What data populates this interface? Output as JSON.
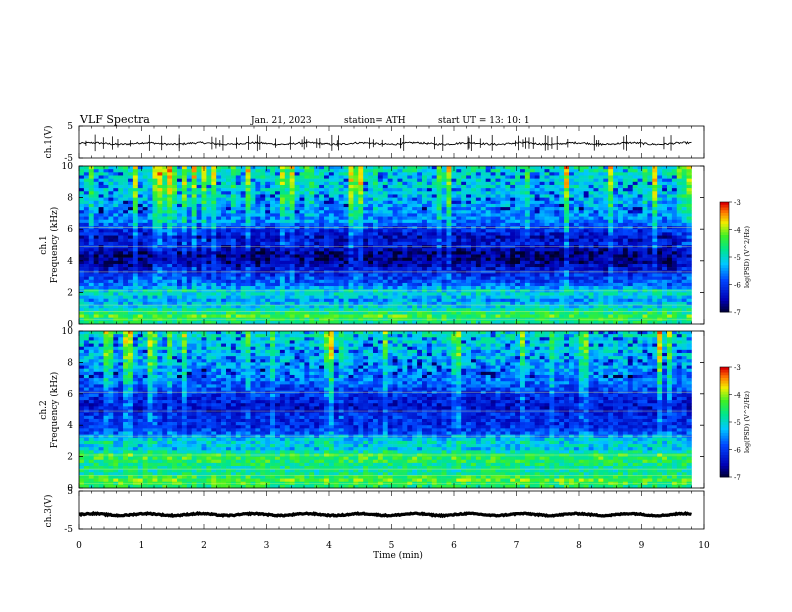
{
  "header": {
    "title": "VLF  Spectra",
    "date": "Jan. 21, 2023",
    "station": "station= ATH",
    "start": "start  UT  =    13: 10: 1"
  },
  "chart_data": [
    {
      "type": "line",
      "id": "ch1-waveform",
      "ylabel": "ch.1(V)",
      "ylim": [
        -5,
        5
      ],
      "yticks": [
        "5",
        "-5"
      ],
      "xlim": [
        0,
        10
      ],
      "trace": {
        "baseline": -0.5,
        "noise_amplitude": 0.6,
        "spike_count": 60,
        "x_end": 9.8
      }
    },
    {
      "type": "heatmap",
      "id": "ch1-spectrogram",
      "ylabel": "ch.1\nFrequency (kHz)",
      "ylim": [
        0,
        10
      ],
      "yticks": [
        "0",
        "2",
        "4",
        "6",
        "8",
        "10"
      ],
      "xlim": [
        0,
        10
      ],
      "x_end": 9.8,
      "colorbar": {
        "label": "log(PSD) (V^2/Hz)",
        "ticks": [
          "-3",
          "-4",
          "-5",
          "-6",
          "-7"
        ],
        "range": [
          -7,
          -3
        ]
      },
      "spectrum_profile": [
        {
          "f": 0.0,
          "v": -4.8
        },
        {
          "f": 0.5,
          "v": -4.3
        },
        {
          "f": 1.0,
          "v": -5.0
        },
        {
          "f": 1.5,
          "v": -5.4
        },
        {
          "f": 2.0,
          "v": -4.9
        },
        {
          "f": 2.5,
          "v": -5.7
        },
        {
          "f": 3.0,
          "v": -6.0
        },
        {
          "f": 3.5,
          "v": -6.3
        },
        {
          "f": 4.0,
          "v": -6.7
        },
        {
          "f": 4.5,
          "v": -6.7
        },
        {
          "f": 5.0,
          "v": -6.2
        },
        {
          "f": 5.5,
          "v": -6.4
        },
        {
          "f": 6.0,
          "v": -6.0
        },
        {
          "f": 6.5,
          "v": -5.6
        },
        {
          "f": 7.0,
          "v": -5.5
        },
        {
          "f": 8.0,
          "v": -5.2
        },
        {
          "f": 9.0,
          "v": -5.0
        },
        {
          "f": 10.0,
          "v": -4.8
        }
      ]
    },
    {
      "type": "heatmap",
      "id": "ch2-spectrogram",
      "ylabel": "ch.2\nFrequency (kHz)",
      "ylim": [
        0,
        10
      ],
      "yticks": [
        "0",
        "2",
        "4",
        "6",
        "8",
        "10"
      ],
      "xlim": [
        0,
        10
      ],
      "x_end": 9.8,
      "colorbar": {
        "label": "log(PSD) (V^2/Hz)",
        "ticks": [
          "-3",
          "-4",
          "-5",
          "-6",
          "-7"
        ],
        "range": [
          -7,
          -3
        ]
      },
      "spectrum_profile": [
        {
          "f": 0.0,
          "v": -4.6
        },
        {
          "f": 0.5,
          "v": -4.2
        },
        {
          "f": 1.0,
          "v": -4.8
        },
        {
          "f": 1.5,
          "v": -4.6
        },
        {
          "f": 2.0,
          "v": -4.3
        },
        {
          "f": 2.5,
          "v": -5.2
        },
        {
          "f": 3.0,
          "v": -5.0
        },
        {
          "f": 3.5,
          "v": -5.8
        },
        {
          "f": 4.0,
          "v": -6.1
        },
        {
          "f": 4.5,
          "v": -6.0
        },
        {
          "f": 5.0,
          "v": -6.3
        },
        {
          "f": 5.5,
          "v": -6.2
        },
        {
          "f": 6.0,
          "v": -6.0
        },
        {
          "f": 6.5,
          "v": -5.8
        },
        {
          "f": 7.0,
          "v": -5.6
        },
        {
          "f": 8.0,
          "v": -5.3
        },
        {
          "f": 9.0,
          "v": -5.1
        },
        {
          "f": 10.0,
          "v": -4.9
        }
      ]
    },
    {
      "type": "line",
      "id": "ch3-waveform",
      "ylabel": "ch.3(V)",
      "ylim": [
        -5,
        5
      ],
      "yticks": [
        "5",
        "-5"
      ],
      "xlim": [
        0,
        10
      ],
      "trace": {
        "baseline": -1.2,
        "noise_amplitude": 0.3,
        "spike_count": 0,
        "x_end": 9.8
      }
    }
  ],
  "xaxis": {
    "label": "Time  (min)",
    "ticks": [
      "0",
      "1",
      "2",
      "3",
      "4",
      "5",
      "6",
      "7",
      "8",
      "9",
      "10"
    ]
  }
}
